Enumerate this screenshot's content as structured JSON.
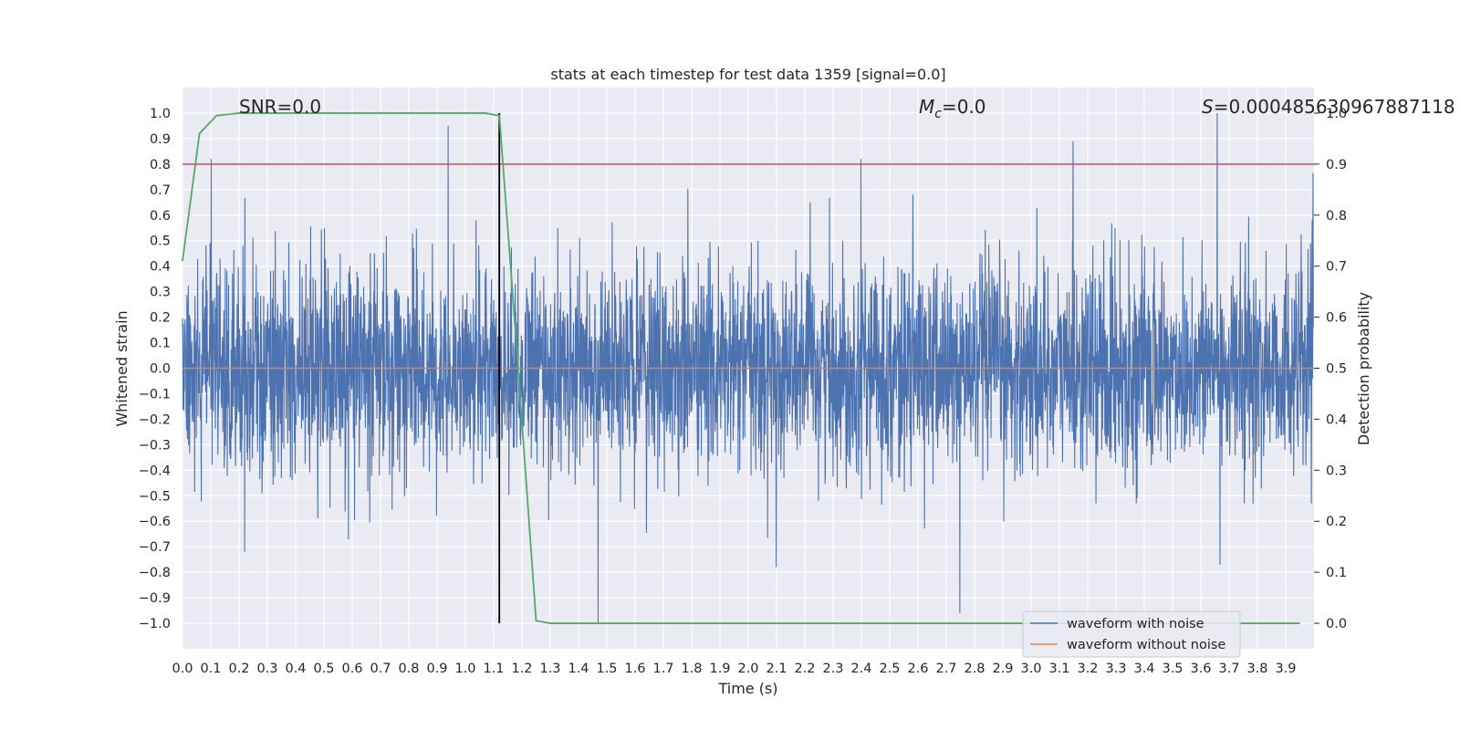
{
  "chart_data": {
    "type": "line",
    "title": "stats at each timestep for test data 1359 [signal=0.0]",
    "xlabel": "Time (s)",
    "ylabel": "Whitened strain",
    "y2label": "Detection probability",
    "xlim": [
      0.0,
      4.0
    ],
    "ylim": [
      -1.1,
      1.1
    ],
    "y2lim": [
      -0.05,
      1.05
    ],
    "grid": true,
    "x_ticks": [
      "0.0",
      "0.1",
      "0.2",
      "0.3",
      "0.4",
      "0.5",
      "0.6",
      "0.7",
      "0.8",
      "0.9",
      "1.0",
      "1.1",
      "1.2",
      "1.3",
      "1.4",
      "1.5",
      "1.6",
      "1.7",
      "1.8",
      "1.9",
      "2.0",
      "2.1",
      "2.2",
      "2.3",
      "2.4",
      "2.5",
      "2.6",
      "2.7",
      "2.8",
      "2.9",
      "3.0",
      "3.1",
      "3.2",
      "3.3",
      "3.4",
      "3.5",
      "3.6",
      "3.7",
      "3.8",
      "3.9"
    ],
    "y_ticks": [
      "1.0",
      "0.9",
      "0.8",
      "0.7",
      "0.6",
      "0.5",
      "0.4",
      "0.3",
      "0.2",
      "0.1",
      "0.0",
      "−0.1",
      "−0.2",
      "−0.3",
      "−0.4",
      "−0.5",
      "−0.6",
      "−0.7",
      "−0.8",
      "−0.9",
      "−1.0"
    ],
    "y2_ticks": [
      "1.0",
      "0.9",
      "0.8",
      "0.7",
      "0.6",
      "0.5",
      "0.4",
      "0.3",
      "0.2",
      "0.1",
      "0.0"
    ],
    "annotations": {
      "snr": "SNR=0.0",
      "mc_symbol": "M",
      "mc_sub": "c",
      "mc_value": "=0.0",
      "s_symbol": "S",
      "s_value": "=0.00048563096788711​8"
    },
    "legend": {
      "position": "lower-right",
      "entries": [
        {
          "label": "waveform with noise",
          "color": "#4c72b0"
        },
        {
          "label": "waveform without noise",
          "color": "#dd8452"
        }
      ]
    },
    "series": [
      {
        "name": "waveform with noise",
        "color": "#4c72b0",
        "axis": "left",
        "note_samples": "dense noise, peaks ~±1.0"
      },
      {
        "name": "waveform without noise",
        "color": "#dd8452",
        "axis": "left",
        "value": 0.0
      },
      {
        "color": "#55a868",
        "axis": "right",
        "x": [
          0.0,
          0.06,
          0.12,
          0.2,
          0.3,
          0.5,
          0.8,
          1.0,
          1.07,
          1.12,
          1.18,
          1.25,
          1.3,
          1.4,
          2.0,
          3.0,
          3.95
        ],
        "values": [
          0.71,
          0.96,
          0.995,
          1.0,
          1.0,
          1.0,
          1.0,
          1.0,
          1.0,
          0.995,
          0.55,
          0.005,
          0.0,
          0.0,
          0.0,
          0.0,
          0.0
        ]
      }
    ],
    "threshold_line": {
      "axis": "right",
      "value": 0.9,
      "color": "#c44e52"
    },
    "vertical_marker": {
      "x": 1.12,
      "y_from": -1.0,
      "y_to": 1.0,
      "color": "#000000"
    },
    "spike_events": [
      {
        "x": 0.94,
        "y": 0.95
      },
      {
        "x": 1.12,
        "y": 1.0
      },
      {
        "x": 1.47,
        "y": -1.0
      },
      {
        "x": 2.4,
        "y": 0.82
      },
      {
        "x": 2.75,
        "y": -0.96
      },
      {
        "x": 3.15,
        "y": 0.89
      },
      {
        "x": 3.66,
        "y": 1.0
      },
      {
        "x": 3.67,
        "y": -0.77
      },
      {
        "x": 0.22,
        "y": -0.72
      },
      {
        "x": 2.1,
        "y": -0.78
      }
    ]
  }
}
